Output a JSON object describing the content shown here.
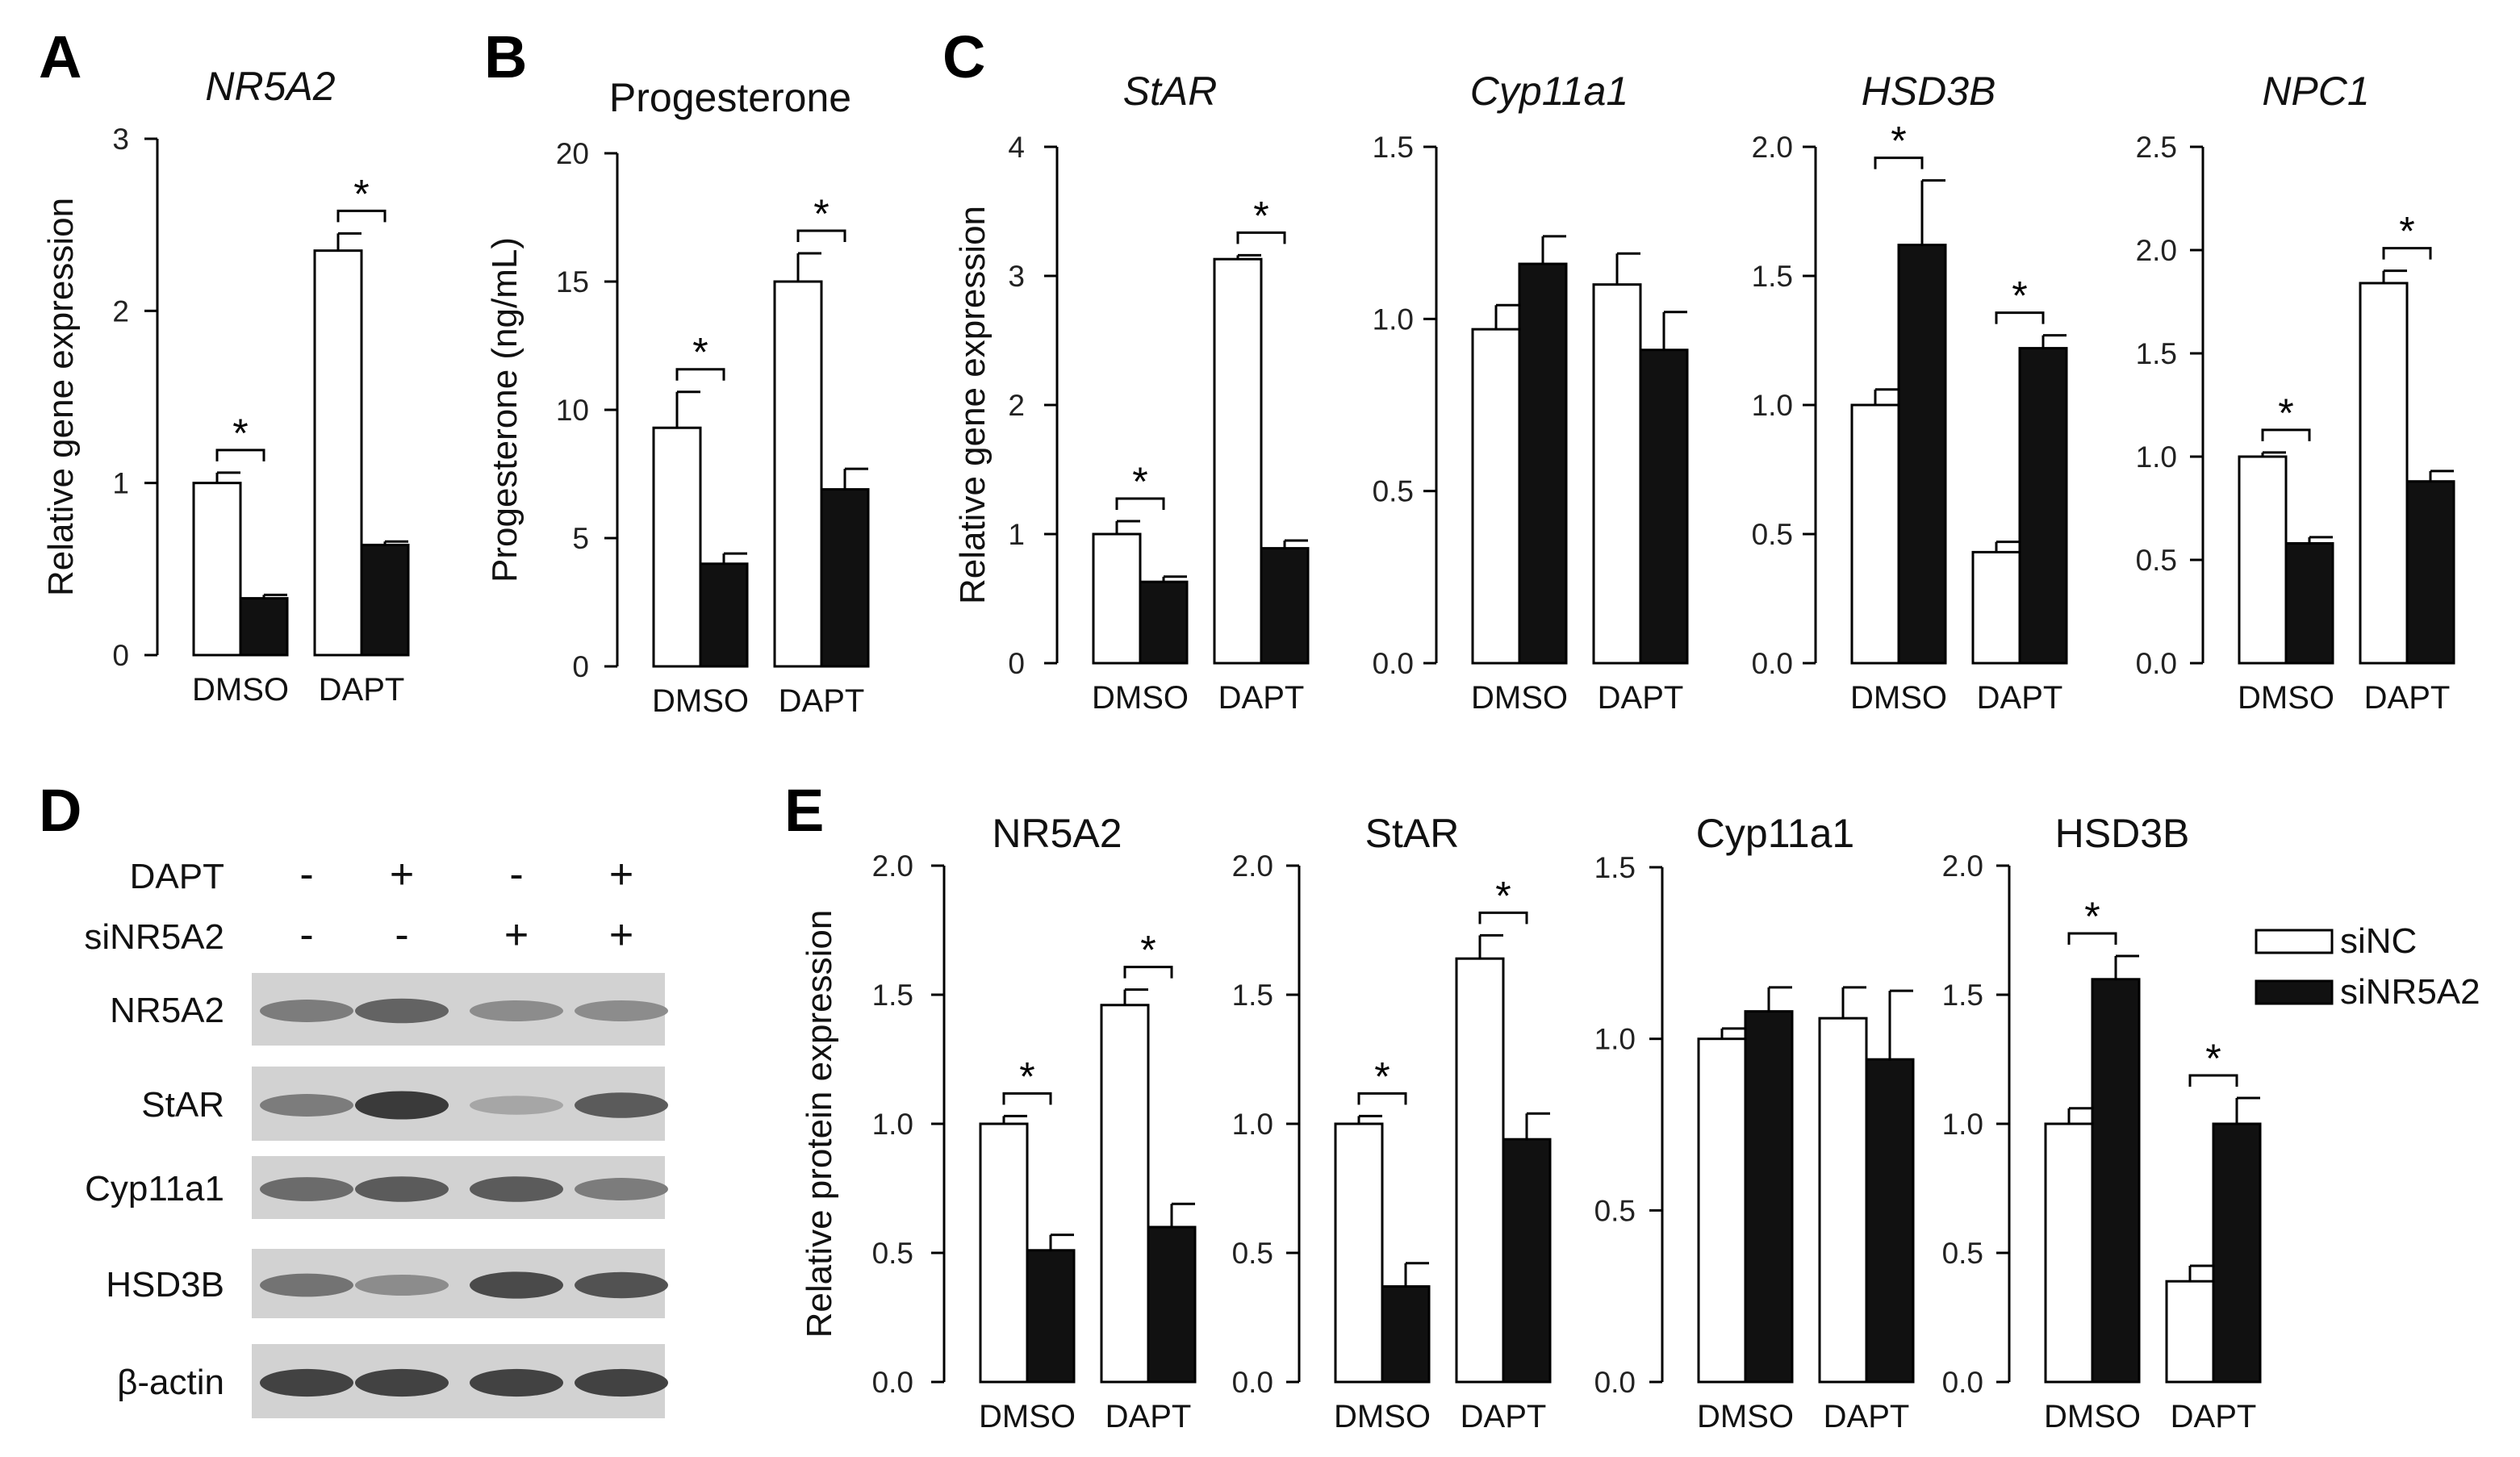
{
  "panels": [
    "A",
    "B",
    "C",
    "D",
    "E"
  ],
  "legend": {
    "series": [
      "siNC",
      "siNR5A2"
    ],
    "colors": [
      "#ffffff",
      "#111111"
    ]
  },
  "chart_data": [
    {
      "panel": "A",
      "type": "bar",
      "title": "NR5A2",
      "italic": true,
      "ylabel": "Relative gene expression",
      "categories": [
        "DMSO",
        "DAPT"
      ],
      "ylim": [
        0,
        3
      ],
      "yticks": [
        "0",
        "1",
        "2",
        "3"
      ],
      "series": [
        {
          "name": "siNC",
          "values": [
            1.0,
            2.35
          ],
          "errors": [
            0.06,
            0.1
          ]
        },
        {
          "name": "siNR5A2",
          "values": [
            0.33,
            0.64
          ],
          "errors": [
            0.02,
            0.02
          ]
        }
      ],
      "significance": [
        true,
        true
      ]
    },
    {
      "panel": "B",
      "type": "bar",
      "title": "Progesterone",
      "italic": false,
      "ylabel": "Progesterone (ng/mL)",
      "categories": [
        "DMSO",
        "DAPT"
      ],
      "ylim": [
        0,
        20
      ],
      "yticks": [
        "0",
        "5",
        "10",
        "15",
        "20"
      ],
      "series": [
        {
          "name": "siNC",
          "values": [
            9.3,
            15.0
          ],
          "errors": [
            1.4,
            1.1
          ]
        },
        {
          "name": "siNR5A2",
          "values": [
            4.0,
            6.9
          ],
          "errors": [
            0.4,
            0.8
          ]
        }
      ],
      "significance": [
        true,
        true
      ]
    },
    {
      "panel": "C",
      "type": "bar",
      "title": "StAR",
      "italic": true,
      "ylabel": "Relative gene expression",
      "categories": [
        "DMSO",
        "DAPT"
      ],
      "ylim": [
        0,
        4
      ],
      "yticks": [
        "0",
        "1",
        "2",
        "3",
        "4"
      ],
      "series": [
        {
          "name": "siNC",
          "values": [
            1.0,
            3.13
          ],
          "errors": [
            0.1,
            0.03
          ]
        },
        {
          "name": "siNR5A2",
          "values": [
            0.63,
            0.89
          ],
          "errors": [
            0.04,
            0.06
          ]
        }
      ],
      "significance": [
        true,
        true
      ]
    },
    {
      "panel": "C",
      "type": "bar",
      "title": "Cyp11a1",
      "italic": true,
      "ylabel": "",
      "categories": [
        "DMSO",
        "DAPT"
      ],
      "ylim": [
        0,
        1.5
      ],
      "yticks": [
        "0.0",
        "0.5",
        "1.0",
        "1.5"
      ],
      "series": [
        {
          "name": "siNC",
          "values": [
            0.97,
            1.1
          ],
          "errors": [
            0.07,
            0.09
          ]
        },
        {
          "name": "siNR5A2",
          "values": [
            1.16,
            0.91
          ],
          "errors": [
            0.08,
            0.11
          ]
        }
      ],
      "significance": [
        false,
        false
      ]
    },
    {
      "panel": "C",
      "type": "bar",
      "title": "HSD3B",
      "italic": true,
      "ylabel": "",
      "categories": [
        "DMSO",
        "DAPT"
      ],
      "ylim": [
        0,
        2.0
      ],
      "yticks": [
        "0.0",
        "0.5",
        "1.0",
        "1.5",
        "2.0"
      ],
      "series": [
        {
          "name": "siNC",
          "values": [
            1.0,
            0.43
          ],
          "errors": [
            0.06,
            0.04
          ]
        },
        {
          "name": "siNR5A2",
          "values": [
            1.62,
            1.22
          ],
          "errors": [
            0.25,
            0.05
          ]
        }
      ],
      "significance": [
        true,
        true
      ]
    },
    {
      "panel": "C",
      "type": "bar",
      "title": "NPC1",
      "italic": true,
      "ylabel": "",
      "categories": [
        "DMSO",
        "DAPT"
      ],
      "ylim": [
        0,
        2.5
      ],
      "yticks": [
        "0.0",
        "0.5",
        "1.0",
        "1.5",
        "2.0",
        "2.5"
      ],
      "series": [
        {
          "name": "siNC",
          "values": [
            1.0,
            1.84
          ],
          "errors": [
            0.02,
            0.06
          ]
        },
        {
          "name": "siNR5A2",
          "values": [
            0.58,
            0.88
          ],
          "errors": [
            0.03,
            0.05
          ]
        }
      ],
      "significance": [
        true,
        true
      ]
    },
    {
      "panel": "E",
      "type": "bar",
      "title": "NR5A2",
      "italic": false,
      "ylabel": "Relative protein expression",
      "categories": [
        "DMSO",
        "DAPT"
      ],
      "ylim": [
        0,
        2.0
      ],
      "yticks": [
        "0.0",
        "0.5",
        "1.0",
        "1.5",
        "2.0"
      ],
      "series": [
        {
          "name": "siNC",
          "values": [
            1.0,
            1.46
          ],
          "errors": [
            0.03,
            0.06
          ]
        },
        {
          "name": "siNR5A2",
          "values": [
            0.51,
            0.6
          ],
          "errors": [
            0.06,
            0.09
          ]
        }
      ],
      "significance": [
        true,
        true
      ]
    },
    {
      "panel": "E",
      "type": "bar",
      "title": "StAR",
      "italic": false,
      "ylabel": "",
      "categories": [
        "DMSO",
        "DAPT"
      ],
      "ylim": [
        0,
        2.0
      ],
      "yticks": [
        "0.0",
        "0.5",
        "1.0",
        "1.5",
        "2.0"
      ],
      "series": [
        {
          "name": "siNC",
          "values": [
            1.0,
            1.64
          ],
          "errors": [
            0.03,
            0.09
          ]
        },
        {
          "name": "siNR5A2",
          "values": [
            0.37,
            0.94
          ],
          "errors": [
            0.09,
            0.1
          ]
        }
      ],
      "significance": [
        true,
        true
      ]
    },
    {
      "panel": "E",
      "type": "bar",
      "title": "Cyp11a1",
      "italic": false,
      "ylabel": "",
      "categories": [
        "DMSO",
        "DAPT"
      ],
      "ylim": [
        0,
        1.5
      ],
      "yticks": [
        "0.0",
        "0.5",
        "1.0",
        "1.5"
      ],
      "series": [
        {
          "name": "siNC",
          "values": [
            1.0,
            1.06
          ],
          "errors": [
            0.03,
            0.09
          ]
        },
        {
          "name": "siNR5A2",
          "values": [
            1.08,
            0.94
          ],
          "errors": [
            0.07,
            0.2
          ]
        }
      ],
      "significance": [
        false,
        false
      ]
    },
    {
      "panel": "E",
      "type": "bar",
      "title": "HSD3B",
      "italic": false,
      "ylabel": "",
      "categories": [
        "DMSO",
        "DAPT"
      ],
      "ylim": [
        0,
        2.0
      ],
      "yticks": [
        "0.0",
        "0.5",
        "1.0",
        "1.5",
        "2.0"
      ],
      "series": [
        {
          "name": "siNC",
          "values": [
            1.0,
            0.39
          ],
          "errors": [
            0.06,
            0.06
          ]
        },
        {
          "name": "siNR5A2",
          "values": [
            1.56,
            1.0
          ],
          "errors": [
            0.09,
            0.1
          ]
        }
      ],
      "significance": [
        true,
        true
      ]
    }
  ],
  "western_blot": {
    "treatment_rows": [
      {
        "label": "DAPT",
        "signs": [
          "-",
          "+",
          "-",
          "+"
        ]
      },
      {
        "label": "siNR5A2",
        "signs": [
          "-",
          "-",
          "+",
          "+"
        ]
      }
    ],
    "bands": [
      {
        "label": "NR5A2",
        "intensity": [
          0.55,
          0.7,
          0.45,
          0.45
        ]
      },
      {
        "label": "StAR",
        "intensity": [
          0.55,
          0.95,
          0.3,
          0.75
        ]
      },
      {
        "label": "Cyp11a1",
        "intensity": [
          0.65,
          0.75,
          0.75,
          0.55
        ]
      },
      {
        "label": "HSD3B",
        "intensity": [
          0.6,
          0.45,
          0.85,
          0.8
        ]
      },
      {
        "label": "β-actin",
        "intensity": [
          0.9,
          0.9,
          0.9,
          0.9
        ]
      }
    ]
  }
}
